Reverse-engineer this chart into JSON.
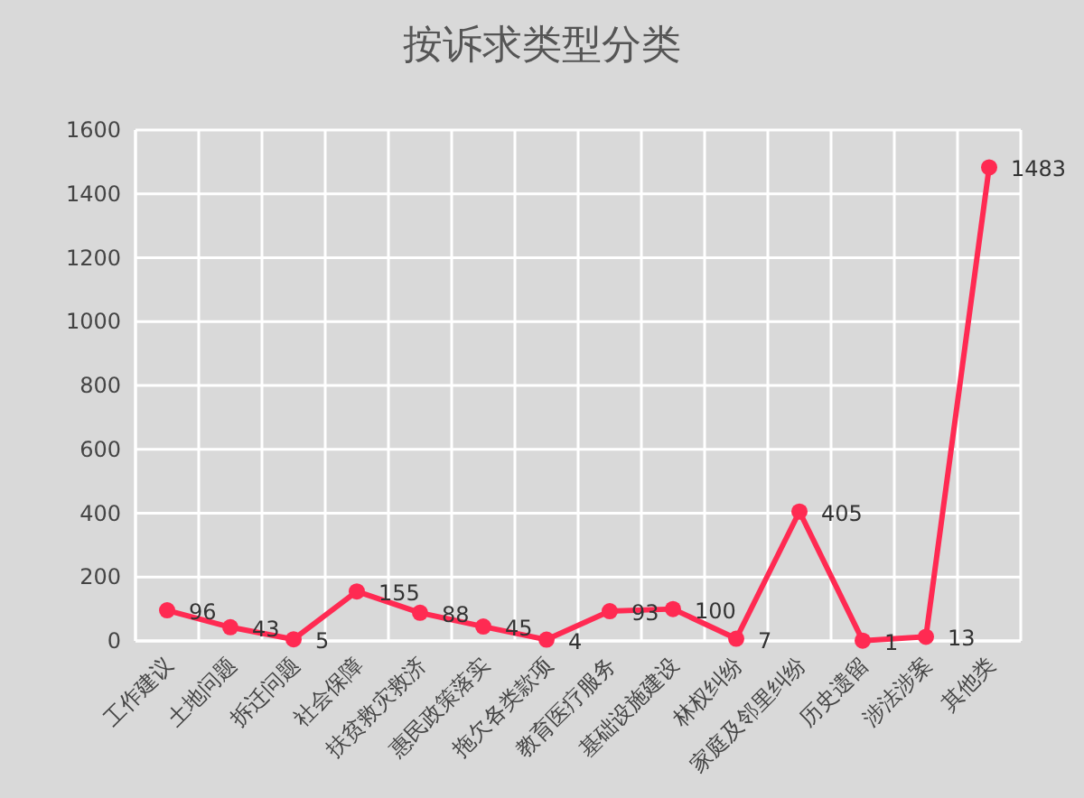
{
  "chart_data": {
    "type": "line",
    "title": "按诉求类型分类",
    "categories": [
      "工作建议",
      "土地问题",
      "拆迁问题",
      "社会保障",
      "扶贫救灾救济",
      "惠民政策落实",
      "拖欠各类款项",
      "教育医疗服务",
      "基础设施建设",
      "林权纠纷",
      "家庭及邻里纠纷",
      "历史遗留",
      "涉法涉案",
      "其他类"
    ],
    "series": [
      {
        "color": "#ff2a52",
        "values": [
          96,
          43,
          5,
          155,
          88,
          45,
          4,
          93,
          100,
          7,
          405,
          1,
          13,
          1483
        ]
      }
    ],
    "ylim": [
      0,
      1600
    ],
    "yticks": [
      0,
      200,
      400,
      600,
      800,
      1000,
      1200,
      1400,
      1600
    ],
    "grid": true,
    "data_labels": true,
    "marker": "circle",
    "line_style": "solid"
  }
}
